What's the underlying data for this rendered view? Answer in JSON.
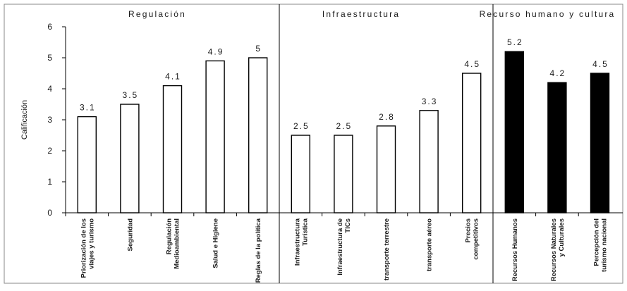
{
  "chart_data": {
    "type": "bar",
    "ylabel": "Calificación",
    "ylim": [
      0,
      6
    ],
    "yticks": [
      "0",
      "1",
      "2",
      "3",
      "4",
      "5",
      "6"
    ],
    "grid": false,
    "groups": [
      {
        "title": "Regulación",
        "fill": "#ffffff",
        "categories": [
          [
            "Priorización de los",
            "viajes y turismo"
          ],
          [
            "Seguridad"
          ],
          [
            "Regulación",
            "Medioambiental"
          ],
          [
            "Salud e Higiene"
          ],
          [
            "Reglas de la política"
          ]
        ],
        "values": [
          3.1,
          3.5,
          4.1,
          4.9,
          5
        ],
        "labels": [
          "3.1",
          "3.5",
          "4.1",
          "4.9",
          "5"
        ]
      },
      {
        "title": "Infraestructura",
        "fill": "#ffffff",
        "categories": [
          [
            "Infraestructura",
            "Turística"
          ],
          [
            "Infraestructura de",
            "TICs"
          ],
          [
            "transporte terrestre"
          ],
          [
            "transporte aéreo"
          ],
          [
            "Precios",
            "competitivos"
          ]
        ],
        "values": [
          2.5,
          2.5,
          2.8,
          3.3,
          4.5
        ],
        "labels": [
          "2.5",
          "2.5",
          "2.8",
          "3.3",
          "4.5"
        ]
      },
      {
        "title": "Recurso humano y cultura",
        "fill": "#000000",
        "categories": [
          [
            "Recursos Humanos"
          ],
          [
            "Recursos Naturales",
            "y Culturales"
          ],
          [
            "Percepción del",
            "turismo nacional"
          ]
        ],
        "values": [
          5.2,
          4.2,
          4.5
        ],
        "labels": [
          "5.2",
          "4.2",
          "4.5"
        ]
      }
    ],
    "colors": {
      "stroke": "#000000",
      "text": "#1a1a1a",
      "frame": "#888888"
    }
  }
}
